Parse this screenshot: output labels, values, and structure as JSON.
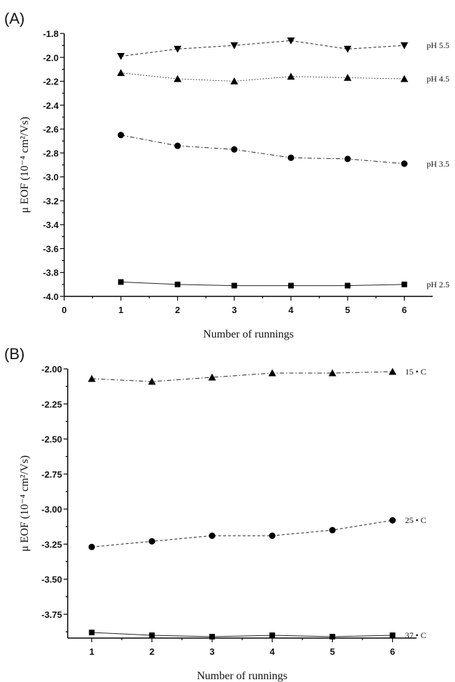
{
  "chart_data": [
    {
      "type": "line",
      "panel": "(A)",
      "xlabel": "Number of runnings",
      "ylabel": "μ EOF (10⁻⁴ cm²/Vs)",
      "xlim": [
        0,
        6.5
      ],
      "ylim": [
        -4.0,
        -1.8
      ],
      "xticks": [
        "0",
        "1",
        "2",
        "3",
        "4",
        "5",
        "6"
      ],
      "yticks": [
        "-1.8",
        "-2.0",
        "-2.2",
        "-2.4",
        "-2.6",
        "-2.8",
        "-3.0",
        "-3.2",
        "-3.4",
        "-3.6",
        "-3.8",
        "-4.0"
      ],
      "grid": false,
      "series": [
        {
          "name": "pH 5.5",
          "marker": "triangle-down",
          "dash": "dashed",
          "x": [
            1,
            2,
            3,
            4,
            5,
            6
          ],
          "y": [
            -1.99,
            -1.93,
            -1.9,
            -1.86,
            -1.93,
            -1.9
          ]
        },
        {
          "name": "pH 4.5",
          "marker": "triangle-up",
          "dash": "dotted",
          "x": [
            1,
            2,
            3,
            4,
            5,
            6
          ],
          "y": [
            -2.13,
            -2.18,
            -2.2,
            -2.16,
            -2.17,
            -2.18
          ]
        },
        {
          "name": "pH 3.5",
          "marker": "circle",
          "dash": "dashdot",
          "x": [
            1,
            2,
            3,
            4,
            5,
            6
          ],
          "y": [
            -2.65,
            -2.74,
            -2.77,
            -2.84,
            -2.85,
            -2.89
          ]
        },
        {
          "name": "pH 2.5",
          "marker": "square",
          "dash": "solid",
          "x": [
            1,
            2,
            3,
            4,
            5,
            6
          ],
          "y": [
            -3.88,
            -3.9,
            -3.91,
            -3.91,
            -3.91,
            -3.9
          ]
        }
      ]
    },
    {
      "type": "line",
      "panel": "(B)",
      "xlabel": "Number of runnings",
      "ylabel": "μ EOF (10⁻⁴ cm²/Vs)",
      "xlim": [
        0.6,
        6.4
      ],
      "ylim": [
        -3.92,
        -2.0
      ],
      "xticks": [
        "1",
        "2",
        "3",
        "4",
        "5",
        "6"
      ],
      "yticks": [
        "-2.00",
        "-2.25",
        "-2.50",
        "-2.75",
        "-3.00",
        "-3.25",
        "-3.50",
        "-3.75"
      ],
      "grid": false,
      "series": [
        {
          "name": "15 • C",
          "marker": "triangle-up",
          "dash": "dashdot",
          "x": [
            1,
            2,
            3,
            4,
            5,
            6
          ],
          "y": [
            -2.07,
            -2.09,
            -2.06,
            -2.03,
            -2.03,
            -2.02
          ]
        },
        {
          "name": "25 • C",
          "marker": "circle",
          "dash": "dashed",
          "x": [
            1,
            2,
            3,
            4,
            5,
            6
          ],
          "y": [
            -3.27,
            -3.23,
            -3.19,
            -3.19,
            -3.15,
            -3.08
          ]
        },
        {
          "name": "37 • C",
          "marker": "square",
          "dash": "solid",
          "x": [
            1,
            2,
            3,
            4,
            5,
            6
          ],
          "y": [
            -3.88,
            -3.9,
            -3.91,
            -3.9,
            -3.91,
            -3.9
          ]
        }
      ]
    }
  ]
}
